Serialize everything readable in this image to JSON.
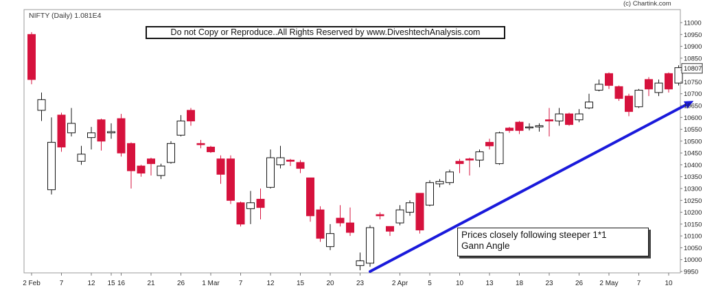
{
  "header": {
    "credit": "(c) Chartink.com",
    "chart_label": "NIFTY (Daily) 1.081E4"
  },
  "watermark": "Do not Copy or Reproduce..All Rights Reserved by www.DiveshtechAnalysis.com",
  "annotation": {
    "line1": "Prices closely following steeper 1*1",
    "line2": "Gann Angle"
  },
  "colors": {
    "bear_candle": "#d6123d",
    "bull_candle": "#ffffff",
    "candle_outline": "#111111",
    "gann_line": "#1a1adb",
    "axis": "#999999"
  },
  "chart_data": {
    "type": "candlestick",
    "title": "NIFTY (Daily) 1.081E4",
    "last_value": "10807",
    "ylim": [
      9950,
      11000
    ],
    "y_ticks": [
      11000,
      10950,
      10900,
      10850,
      10800,
      10750,
      10700,
      10650,
      10600,
      10550,
      10500,
      10450,
      10400,
      10350,
      10300,
      10250,
      10200,
      10150,
      10100,
      10050,
      10000,
      9950
    ],
    "x_ticks": [
      {
        "label": "2 Feb",
        "i": 0
      },
      {
        "label": "7",
        "i": 3
      },
      {
        "label": "12",
        "i": 6
      },
      {
        "label": "15",
        "i": 8
      },
      {
        "label": "16",
        "i": 9
      },
      {
        "label": "21",
        "i": 12
      },
      {
        "label": "26",
        "i": 15
      },
      {
        "label": "1 Mar",
        "i": 18
      },
      {
        "label": "7",
        "i": 21
      },
      {
        "label": "12",
        "i": 24
      },
      {
        "label": "15",
        "i": 27
      },
      {
        "label": "20",
        "i": 30
      },
      {
        "label": "23",
        "i": 33
      },
      {
        "label": "2 Apr",
        "i": 37
      },
      {
        "label": "5",
        "i": 40
      },
      {
        "label": "10",
        "i": 43
      },
      {
        "label": "13",
        "i": 46
      },
      {
        "label": "18",
        "i": 49
      },
      {
        "label": "23",
        "i": 52
      },
      {
        "label": "26",
        "i": 55
      },
      {
        "label": "2 May",
        "i": 58
      },
      {
        "label": "7",
        "i": 61
      },
      {
        "label": "10",
        "i": 64
      }
    ],
    "candles": [
      {
        "o": 10950,
        "h": 10960,
        "l": 10740,
        "c": 10760
      },
      {
        "o": 10630,
        "h": 10705,
        "l": 10585,
        "c": 10675
      },
      {
        "o": 10295,
        "h": 10600,
        "l": 10275,
        "c": 10495
      },
      {
        "o": 10610,
        "h": 10620,
        "l": 10455,
        "c": 10475
      },
      {
        "o": 10535,
        "h": 10640,
        "l": 10520,
        "c": 10575
      },
      {
        "o": 10415,
        "h": 10480,
        "l": 10400,
        "c": 10445
      },
      {
        "o": 10515,
        "h": 10560,
        "l": 10465,
        "c": 10535
      },
      {
        "o": 10590,
        "h": 10595,
        "l": 10460,
        "c": 10500
      },
      {
        "o": 10535,
        "h": 10575,
        "l": 10510,
        "c": 10540
      },
      {
        "o": 10595,
        "h": 10615,
        "l": 10435,
        "c": 10450
      },
      {
        "o": 10490,
        "h": 10495,
        "l": 10300,
        "c": 10375
      },
      {
        "o": 10395,
        "h": 10400,
        "l": 10350,
        "c": 10365
      },
      {
        "o": 10425,
        "h": 10430,
        "l": 10355,
        "c": 10405
      },
      {
        "o": 10355,
        "h": 10405,
        "l": 10340,
        "c": 10395
      },
      {
        "o": 10410,
        "h": 10500,
        "l": 10405,
        "c": 10490
      },
      {
        "o": 10525,
        "h": 10610,
        "l": 10520,
        "c": 10585
      },
      {
        "o": 10630,
        "h": 10640,
        "l": 10565,
        "c": 10585
      },
      {
        "o": 10490,
        "h": 10505,
        "l": 10470,
        "c": 10485
      },
      {
        "o": 10475,
        "h": 10480,
        "l": 10450,
        "c": 10455
      },
      {
        "o": 10425,
        "h": 10440,
        "l": 10320,
        "c": 10360
      },
      {
        "o": 10425,
        "h": 10440,
        "l": 10235,
        "c": 10250
      },
      {
        "o": 10240,
        "h": 10245,
        "l": 10140,
        "c": 10150
      },
      {
        "o": 10215,
        "h": 10290,
        "l": 10150,
        "c": 10240
      },
      {
        "o": 10255,
        "h": 10300,
        "l": 10170,
        "c": 10220
      },
      {
        "o": 10305,
        "h": 10465,
        "l": 10300,
        "c": 10430
      },
      {
        "o": 10400,
        "h": 10480,
        "l": 10385,
        "c": 10430
      },
      {
        "o": 10420,
        "h": 10425,
        "l": 10395,
        "c": 10415
      },
      {
        "o": 10410,
        "h": 10420,
        "l": 10365,
        "c": 10385
      },
      {
        "o": 10345,
        "h": 10345,
        "l": 10160,
        "c": 10185
      },
      {
        "o": 10210,
        "h": 10225,
        "l": 10075,
        "c": 10090
      },
      {
        "o": 10055,
        "h": 10150,
        "l": 10040,
        "c": 10110
      },
      {
        "o": 10175,
        "h": 10230,
        "l": 10140,
        "c": 10155
      },
      {
        "o": 10155,
        "h": 10220,
        "l": 10100,
        "c": 10115
      },
      {
        "o": 9975,
        "h": 10030,
        "l": 9955,
        "c": 9995
      },
      {
        "o": 9985,
        "h": 10145,
        "l": 9970,
        "c": 10135
      },
      {
        "o": 10190,
        "h": 10200,
        "l": 10170,
        "c": 10185
      },
      {
        "o": 10140,
        "h": 10140,
        "l": 10100,
        "c": 10120
      },
      {
        "o": 10155,
        "h": 10230,
        "l": 10145,
        "c": 10210
      },
      {
        "o": 10200,
        "h": 10250,
        "l": 10185,
        "c": 10240
      },
      {
        "o": 10280,
        "h": 10280,
        "l": 10110,
        "c": 10125
      },
      {
        "o": 10230,
        "h": 10335,
        "l": 10225,
        "c": 10325
      },
      {
        "o": 10320,
        "h": 10340,
        "l": 10305,
        "c": 10330
      },
      {
        "o": 10325,
        "h": 10380,
        "l": 10315,
        "c": 10370
      },
      {
        "o": 10415,
        "h": 10425,
        "l": 10365,
        "c": 10405
      },
      {
        "o": 10425,
        "h": 10430,
        "l": 10355,
        "c": 10420
      },
      {
        "o": 10420,
        "h": 10465,
        "l": 10390,
        "c": 10455
      },
      {
        "o": 10495,
        "h": 10510,
        "l": 10465,
        "c": 10480
      },
      {
        "o": 10405,
        "h": 10540,
        "l": 10400,
        "c": 10535
      },
      {
        "o": 10555,
        "h": 10560,
        "l": 10535,
        "c": 10545
      },
      {
        "o": 10580,
        "h": 10585,
        "l": 10530,
        "c": 10545
      },
      {
        "o": 10560,
        "h": 10575,
        "l": 10545,
        "c": 10560
      },
      {
        "o": 10560,
        "h": 10575,
        "l": 10540,
        "c": 10565
      },
      {
        "o": 10590,
        "h": 10640,
        "l": 10520,
        "c": 10585
      },
      {
        "o": 10585,
        "h": 10640,
        "l": 10565,
        "c": 10615
      },
      {
        "o": 10615,
        "h": 10620,
        "l": 10565,
        "c": 10570
      },
      {
        "o": 10590,
        "h": 10635,
        "l": 10580,
        "c": 10615
      },
      {
        "o": 10640,
        "h": 10700,
        "l": 10635,
        "c": 10665
      },
      {
        "o": 10715,
        "h": 10760,
        "l": 10710,
        "c": 10740
      },
      {
        "o": 10785,
        "h": 10790,
        "l": 10720,
        "c": 10735
      },
      {
        "o": 10730,
        "h": 10735,
        "l": 10670,
        "c": 10680
      },
      {
        "o": 10690,
        "h": 10700,
        "l": 10605,
        "c": 10625
      },
      {
        "o": 10645,
        "h": 10720,
        "l": 10640,
        "c": 10715
      },
      {
        "o": 10760,
        "h": 10770,
        "l": 10690,
        "c": 10720
      },
      {
        "o": 10705,
        "h": 10760,
        "l": 10690,
        "c": 10745
      },
      {
        "o": 10785,
        "h": 10790,
        "l": 10705,
        "c": 10720
      },
      {
        "o": 10745,
        "h": 10820,
        "l": 10735,
        "c": 10810
      }
    ],
    "gann_line": {
      "from": {
        "i": 34,
        "value": 9950
      },
      "to": {
        "i": 66.5,
        "value": 10670
      }
    }
  }
}
